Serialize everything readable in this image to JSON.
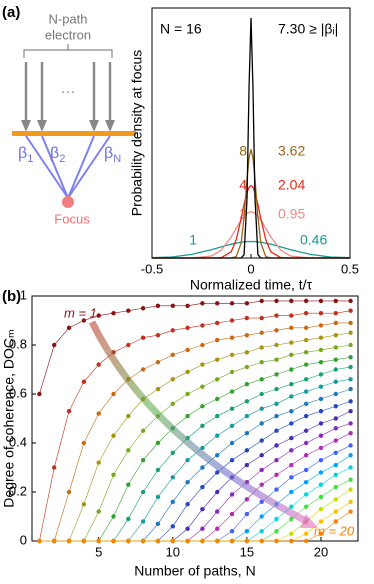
{
  "panel_labels": [
    "(a)",
    "(b)"
  ],
  "diagram": {
    "source_label": [
      "N-path",
      "electron"
    ],
    "ellipsis": "···",
    "beta_labels": [
      {
        "symbol": "β",
        "sub": "1"
      },
      {
        "symbol": "β",
        "sub": "2"
      },
      {
        "symbol": "β",
        "sub": "N"
      }
    ],
    "focus_label": "Focus"
  },
  "chart_data": [
    {
      "type": "line",
      "x_label": "Normalized time, t/τ",
      "y_label": "Probability density at focus",
      "x": [
        -0.5,
        -0.4,
        -0.3,
        -0.2,
        -0.15,
        -0.1,
        -0.075,
        -0.05,
        -0.035,
        -0.02,
        -0.01,
        0,
        0.01,
        0.02,
        0.035,
        0.05,
        0.075,
        0.1,
        0.15,
        0.2,
        0.3,
        0.4,
        0.5
      ],
      "xlim": [
        -0.5,
        0.5
      ],
      "xticks": [
        -0.5,
        0,
        0.5
      ],
      "ylim": [
        0,
        7.6
      ],
      "series": [
        {
          "name": "1",
          "bound": "0.46",
          "color": "#1a9a96",
          "values": [
            0.01,
            0.03,
            0.11,
            0.25,
            0.34,
            0.42,
            0.45,
            0.48,
            0.49,
            0.5,
            0.5,
            0.5,
            0.5,
            0.5,
            0.49,
            0.48,
            0.45,
            0.42,
            0.34,
            0.25,
            0.11,
            0.03,
            0.01
          ]
        },
        {
          "name": "2",
          "bound": "0.95",
          "color": "#f08a84",
          "values": [
            0,
            0,
            0,
            0.06,
            0.24,
            0.64,
            0.9,
            1.15,
            1.27,
            1.36,
            1.39,
            1.4,
            1.39,
            1.36,
            1.27,
            1.15,
            0.9,
            0.64,
            0.24,
            0.06,
            0,
            0,
            0
          ]
        },
        {
          "name": "4",
          "bound": "2.04",
          "color": "#e8261e",
          "values": [
            0,
            0,
            0,
            0,
            0.01,
            0.19,
            0.55,
            1.19,
            1.63,
            1.99,
            2.15,
            2.2,
            2.15,
            1.99,
            1.63,
            1.19,
            0.55,
            0.19,
            0.01,
            0,
            0,
            0,
            0
          ]
        },
        {
          "name": "8",
          "bound": "3.62",
          "color": "#9a6418",
          "values": [
            0,
            0,
            0,
            0,
            0,
            0,
            0.04,
            0.45,
            1.24,
            2.4,
            3.05,
            3.3,
            3.05,
            2.4,
            1.24,
            0.45,
            0.04,
            0,
            0,
            0,
            0,
            0,
            0
          ]
        },
        {
          "name": "N = 16",
          "bound": "7.30 ≥ |βᵢ|",
          "color": "#000000",
          "values": [
            0,
            0,
            0,
            0,
            0,
            0,
            0,
            0,
            0.1,
            1.82,
            5.16,
            7.3,
            5.16,
            1.82,
            0.1,
            0,
            0,
            0,
            0,
            0,
            0,
            0,
            0
          ]
        }
      ]
    },
    {
      "type": "line",
      "markers": true,
      "x_label": "Number of paths, N",
      "y_label": "Degree of coherence, DOCₘ",
      "annotations": [
        "m = 1",
        "m = 20"
      ],
      "x": [
        1,
        2,
        3,
        4,
        5,
        6,
        7,
        8,
        9,
        10,
        11,
        12,
        13,
        14,
        15,
        16,
        17,
        18,
        19,
        20,
        21,
        22
      ],
      "xlim": [
        0.5,
        22.5
      ],
      "xticks": [
        5,
        10,
        15,
        20
      ],
      "ylim": [
        0,
        1
      ],
      "yticks": [
        0,
        0.2,
        0.4,
        0.6,
        0.8,
        1
      ],
      "series": [
        {
          "color": "#8b1010",
          "values": [
            0.6,
            0.8,
            0.87,
            0.9,
            0.92,
            0.93,
            0.94,
            0.95,
            0.96,
            0.96,
            0.96,
            0.97,
            0.97,
            0.97,
            0.97,
            0.98,
            0.98,
            0.98,
            0.98,
            0.98,
            0.98,
            0.98
          ]
        },
        {
          "color": "#c0301c",
          "values": [
            0,
            0.3,
            0.53,
            0.65,
            0.72,
            0.77,
            0.8,
            0.83,
            0.84,
            0.86,
            0.87,
            0.88,
            0.89,
            0.9,
            0.91,
            0.91,
            0.92,
            0.92,
            0.93,
            0.93,
            0.93,
            0.94
          ]
        },
        {
          "color": "#c86a14",
          "values": [
            0,
            0,
            0.2,
            0.4,
            0.52,
            0.6,
            0.66,
            0.7,
            0.73,
            0.76,
            0.78,
            0.8,
            0.82,
            0.83,
            0.84,
            0.85,
            0.86,
            0.87,
            0.87,
            0.88,
            0.89,
            0.89
          ]
        },
        {
          "color": "#a89414",
          "values": [
            0,
            0,
            0,
            0.15,
            0.32,
            0.43,
            0.51,
            0.58,
            0.62,
            0.66,
            0.69,
            0.72,
            0.74,
            0.76,
            0.77,
            0.79,
            0.8,
            0.81,
            0.82,
            0.83,
            0.84,
            0.85
          ]
        },
        {
          "color": "#78a81c",
          "values": [
            0,
            0,
            0,
            0,
            0.12,
            0.27,
            0.37,
            0.45,
            0.51,
            0.56,
            0.6,
            0.63,
            0.66,
            0.69,
            0.71,
            0.73,
            0.74,
            0.76,
            0.77,
            0.78,
            0.79,
            0.8
          ]
        },
        {
          "color": "#34a030",
          "values": [
            0,
            0,
            0,
            0,
            0,
            0.1,
            0.23,
            0.33,
            0.4,
            0.46,
            0.51,
            0.55,
            0.58,
            0.61,
            0.64,
            0.66,
            0.68,
            0.7,
            0.72,
            0.73,
            0.74,
            0.75
          ]
        },
        {
          "color": "#18a070",
          "values": [
            0,
            0,
            0,
            0,
            0,
            0,
            0.09,
            0.2,
            0.29,
            0.36,
            0.42,
            0.47,
            0.51,
            0.54,
            0.57,
            0.6,
            0.62,
            0.64,
            0.66,
            0.68,
            0.7,
            0.71
          ]
        },
        {
          "color": "#149ca0",
          "values": [
            0,
            0,
            0,
            0,
            0,
            0,
            0,
            0.08,
            0.18,
            0.26,
            0.33,
            0.38,
            0.43,
            0.47,
            0.51,
            0.54,
            0.56,
            0.59,
            0.61,
            0.63,
            0.65,
            0.66
          ]
        },
        {
          "color": "#1c78c0",
          "values": [
            0,
            0,
            0,
            0,
            0,
            0,
            0,
            0,
            0.07,
            0.16,
            0.24,
            0.3,
            0.35,
            0.4,
            0.44,
            0.48,
            0.51,
            0.53,
            0.56,
            0.58,
            0.6,
            0.62
          ]
        },
        {
          "color": "#2448c0",
          "values": [
            0,
            0,
            0,
            0,
            0,
            0,
            0,
            0,
            0,
            0.06,
            0.15,
            0.22,
            0.28,
            0.33,
            0.37,
            0.41,
            0.45,
            0.48,
            0.51,
            0.53,
            0.55,
            0.57
          ]
        },
        {
          "color": "#4a2cb0",
          "values": [
            0,
            0,
            0,
            0,
            0,
            0,
            0,
            0,
            0,
            0,
            0.05,
            0.13,
            0.2,
            0.26,
            0.31,
            0.35,
            0.39,
            0.42,
            0.45,
            0.48,
            0.5,
            0.53
          ]
        },
        {
          "color": "#8a28b8",
          "values": [
            0,
            0,
            0,
            0,
            0,
            0,
            0,
            0,
            0,
            0,
            0,
            0.05,
            0.12,
            0.19,
            0.24,
            0.29,
            0.33,
            0.37,
            0.4,
            0.43,
            0.46,
            0.48
          ]
        },
        {
          "color": "#b02cb0",
          "values": [
            0,
            0,
            0,
            0,
            0,
            0,
            0,
            0,
            0,
            0,
            0,
            0,
            0.05,
            0.11,
            0.17,
            0.23,
            0.27,
            0.31,
            0.35,
            0.38,
            0.41,
            0.44
          ]
        },
        {
          "color": "#4060ff",
          "values": [
            0,
            0,
            0,
            0,
            0,
            0,
            0,
            0,
            0,
            0,
            0,
            0,
            0,
            0.04,
            0.11,
            0.16,
            0.21,
            0.26,
            0.29,
            0.33,
            0.36,
            0.39
          ]
        },
        {
          "color": "#00a0ff",
          "values": [
            0,
            0,
            0,
            0,
            0,
            0,
            0,
            0,
            0,
            0,
            0,
            0,
            0,
            0,
            0.04,
            0.1,
            0.15,
            0.2,
            0.24,
            0.28,
            0.31,
            0.35
          ]
        },
        {
          "color": "#00d8d8",
          "values": [
            0,
            0,
            0,
            0,
            0,
            0,
            0,
            0,
            0,
            0,
            0,
            0,
            0,
            0,
            0,
            0.04,
            0.09,
            0.14,
            0.19,
            0.23,
            0.27,
            0.3
          ]
        },
        {
          "color": "#40e040",
          "values": [
            0,
            0,
            0,
            0,
            0,
            0,
            0,
            0,
            0,
            0,
            0,
            0,
            0,
            0,
            0,
            0,
            0.04,
            0.09,
            0.14,
            0.18,
            0.22,
            0.25
          ]
        },
        {
          "color": "#c8e000",
          "values": [
            0,
            0,
            0,
            0,
            0,
            0,
            0,
            0,
            0,
            0,
            0,
            0,
            0,
            0,
            0,
            0,
            0,
            0.03,
            0.08,
            0.13,
            0.17,
            0.21
          ]
        },
        {
          "color": "#ffc000",
          "values": [
            0,
            0,
            0,
            0,
            0,
            0,
            0,
            0,
            0,
            0,
            0,
            0,
            0,
            0,
            0,
            0,
            0,
            0,
            0.03,
            0.08,
            0.12,
            0.16
          ]
        },
        {
          "color": "#ff8000",
          "values": [
            0,
            0,
            0,
            0,
            0,
            0,
            0,
            0,
            0,
            0,
            0,
            0,
            0,
            0,
            0,
            0,
            0,
            0,
            0,
            0.03,
            0.08,
            0.12
          ]
        }
      ]
    }
  ]
}
